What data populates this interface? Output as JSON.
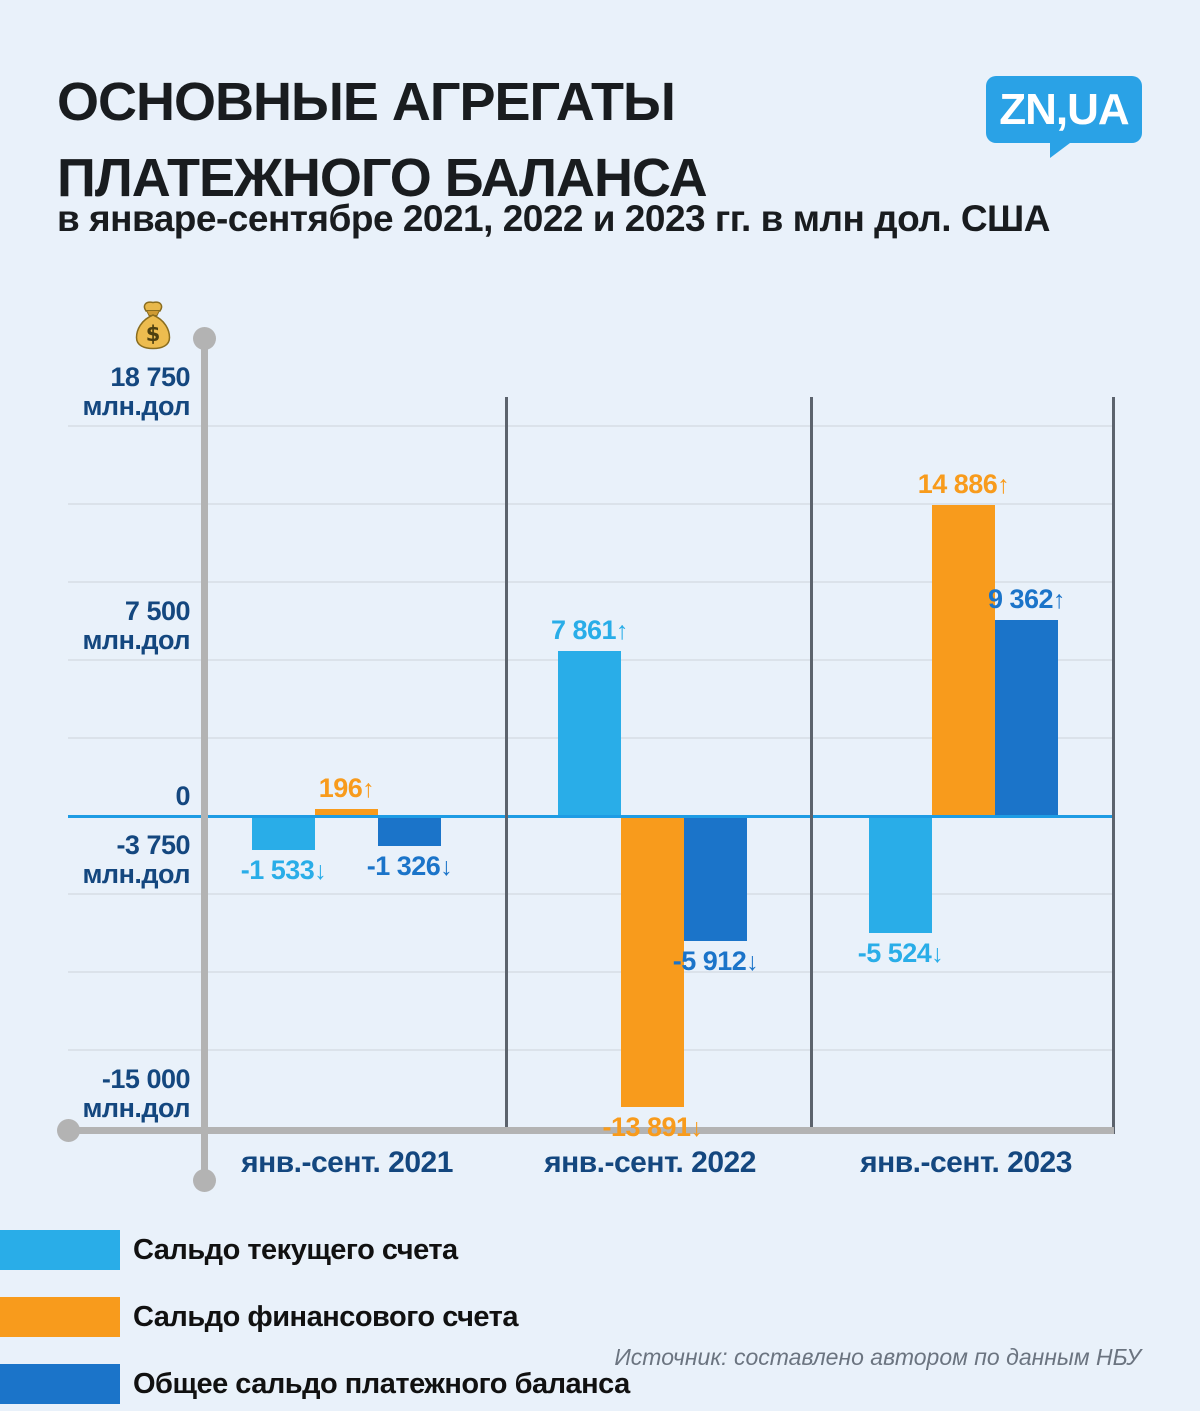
{
  "header": {
    "title_line1": "ОСНОВНЫЕ АГРЕГАТЫ",
    "title_line2": "ПЛАТЕЖНОГО БАЛАНСА",
    "subtitle": "в январе-сентябре 2021, 2022 и 2023 гг. в млн дол. США",
    "logo_text": "ZN,UA"
  },
  "chart_data": {
    "type": "bar",
    "title": "Основные агрегаты платежного баланса в январе-сентябре 2021, 2022 и 2023 гг. в млн дол. США",
    "unit": "млн дол. США",
    "categories": [
      "янв.-сент. 2021",
      "янв.-сент. 2022",
      "янв.-сент. 2023"
    ],
    "series": [
      {
        "name": "Сальдо текущего счета",
        "color": "#29ade8",
        "values": [
          -1533,
          7861,
          -5524
        ],
        "value_labels": [
          {
            "text": "-1 533",
            "arrow": "↓"
          },
          {
            "text": "7 861",
            "arrow": "↑"
          },
          {
            "text": "-5 524",
            "arrow": "↓"
          }
        ]
      },
      {
        "name": "Сальдо финансового счета",
        "color": "#f89b1c",
        "values": [
          196,
          -13891,
          14886
        ],
        "value_labels": [
          {
            "text": "196",
            "arrow": "↑"
          },
          {
            "text": "-13 891",
            "arrow": "↓"
          },
          {
            "text": "14 886",
            "arrow": "↑"
          }
        ]
      },
      {
        "name": "Общее сальдо платежного баланса",
        "color": "#1b74c9",
        "values": [
          -1326,
          -5912,
          9362
        ],
        "value_labels": [
          {
            "text": "-1 326",
            "arrow": "↓"
          },
          {
            "text": "-5 912",
            "arrow": "↓"
          },
          {
            "text": "9 362",
            "arrow": "↑"
          }
        ]
      }
    ],
    "y_axis": {
      "ylim": [
        -15000,
        18750
      ],
      "tick_labels": [
        {
          "value": 18750,
          "lines": [
            "18 750",
            "млн.дол"
          ]
        },
        {
          "value": 7500,
          "lines": [
            "7 500",
            "млн.дол"
          ]
        },
        {
          "value": 0,
          "lines": [
            "0"
          ]
        },
        {
          "value": -3750,
          "lines": [
            "-3 750",
            "млн.дол"
          ]
        },
        {
          "value": -15000,
          "lines": [
            "-15 000",
            "млн.дол"
          ]
        }
      ],
      "gridline_values": [
        18750,
        15000,
        11250,
        7500,
        3750,
        -3750,
        -7500,
        -11250
      ],
      "axis_icon": "money-bag-icon"
    },
    "grid": true,
    "legend_position": "bottom-left"
  },
  "source": "Источник: составлено автором по данным НБУ",
  "colors": {
    "background": "#e9f1fa",
    "series_current_account": "#29ade8",
    "series_financial_account": "#f89b1c",
    "series_overall_balance": "#1b74c9",
    "axis_text": "#14477f",
    "zero_line": "#1e9ce4",
    "axis_gray": "#b3b3b3",
    "separator_gray": "#5c636d",
    "logo_blue": "#2aa2e6",
    "source_gray": "#6b7480"
  }
}
